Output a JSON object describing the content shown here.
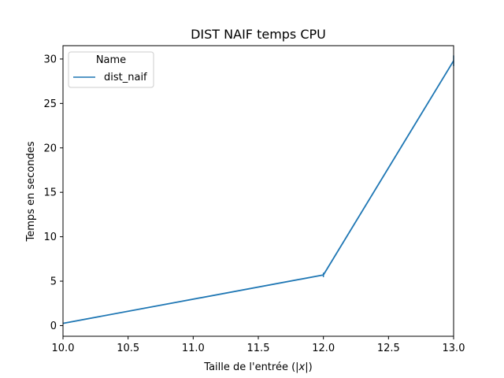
{
  "chart_data": {
    "type": "line",
    "title": "DIST NAIF temps CPU",
    "xlabel_prefix": "Taille de l'entrée (|",
    "xlabel_var": "x",
    "xlabel_suffix": "|)",
    "ylabel": "Temps en secondes",
    "xlim": [
      10.0,
      13.0
    ],
    "ylim": [
      -1.2,
      31.5
    ],
    "xticks": [
      10.0,
      10.5,
      11.0,
      11.5,
      12.0,
      12.5,
      13.0
    ],
    "xtick_labels": [
      "10.0",
      "10.5",
      "11.0",
      "11.5",
      "12.0",
      "12.5",
      "13.0"
    ],
    "yticks": [
      0,
      5,
      10,
      15,
      20,
      25,
      30
    ],
    "ytick_labels": [
      "0",
      "5",
      "10",
      "15",
      "20",
      "25",
      "30"
    ],
    "grid": false,
    "legend": {
      "title": "Name",
      "placement": "upper-left"
    },
    "series": [
      {
        "name": "dist_naif",
        "color": "#1f77b4",
        "x": [
          10,
          12,
          13
        ],
        "y": [
          0.25,
          5.7,
          29.8
        ],
        "error_low": [
          0.25,
          5.45,
          29.2
        ],
        "error_high": [
          0.25,
          5.95,
          30.4
        ]
      }
    ]
  }
}
